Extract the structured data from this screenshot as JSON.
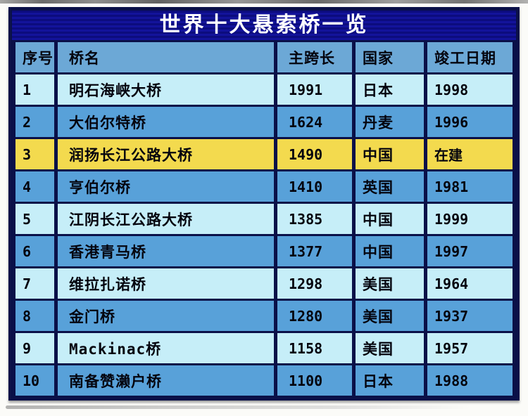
{
  "chart_data": {
    "type": "table",
    "title": "世界十大悬索桥一览",
    "columns": [
      "序号",
      "桥名",
      "主跨长",
      "国家",
      "竣工日期"
    ],
    "rows": [
      [
        "1",
        "明石海峡大桥",
        "1991",
        "日本",
        "1998"
      ],
      [
        "2",
        "大伯尔特桥",
        "1624",
        "丹麦",
        "1996"
      ],
      [
        "3",
        "润扬长江公路大桥",
        "1490",
        "中国",
        "在建"
      ],
      [
        "4",
        "亨伯尔桥",
        "1410",
        "英国",
        "1981"
      ],
      [
        "5",
        "江阴长江公路大桥",
        "1385",
        "中国",
        "1999"
      ],
      [
        "6",
        "香港青马桥",
        "1377",
        "中国",
        "1997"
      ],
      [
        "7",
        "维拉扎诺桥",
        "1298",
        "美国",
        "1964"
      ],
      [
        "8",
        "金门桥",
        "1280",
        "美国",
        "1937"
      ],
      [
        "9",
        "Mackinac桥",
        "1158",
        "美国",
        "1957"
      ],
      [
        "10",
        "南备赞濑户桥",
        "1100",
        "日本",
        "1988"
      ]
    ],
    "row_variants": [
      "light",
      "dark",
      "highlight",
      "dark",
      "light",
      "dark",
      "light",
      "dark",
      "light",
      "dark"
    ],
    "highlighted_row_index": 2
  },
  "colors": {
    "title_bg": "#0c0c7e",
    "title_text": "#ffffff",
    "header_bg": "#6ca8d6",
    "row_light_bg": "#c6eef8",
    "row_dark_bg": "#58a1d9",
    "row_highlight_bg": "#f3da4e",
    "border": "#0a1048",
    "cell_text": "#04040e"
  }
}
